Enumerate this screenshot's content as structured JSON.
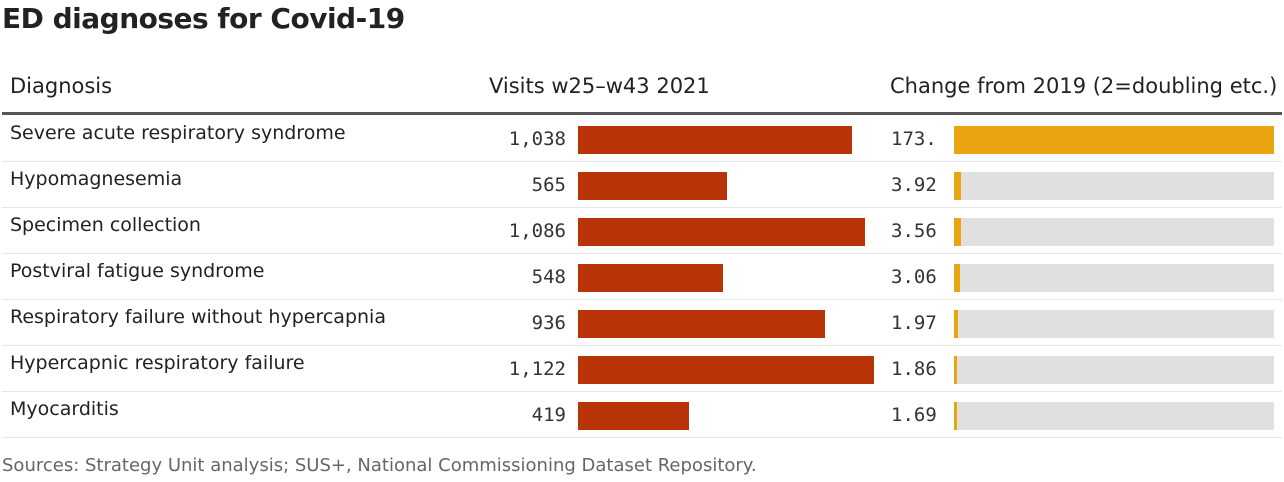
{
  "title": "ED diagnoses for Covid-19",
  "headers": {
    "diagnosis": "Diagnosis",
    "visits": "Visits w25–w43 2021",
    "change": "Change from 2019 (2=doubling etc.)"
  },
  "source": "Sources: Strategy Unit analysis; SUS+, National Commissioning Dataset Repository.",
  "colors": {
    "visits_bar": "#b83306",
    "change_bar": "#e9a40f",
    "change_track": "#e0e0e0"
  },
  "chart_data": {
    "type": "table",
    "title": "ED diagnoses for Covid-19",
    "columns": [
      "Diagnosis",
      "Visits w25–w43 2021",
      "Change from 2019 (2=doubling etc.)"
    ],
    "visits_max": 1122,
    "change_max": 173,
    "rows": [
      {
        "diagnosis": "Severe acute respiratory syndrome",
        "visits": 1038,
        "visits_label": "1,038",
        "change": 173,
        "change_label": "173."
      },
      {
        "diagnosis": "Hypomagnesemia",
        "visits": 565,
        "visits_label": "565",
        "change": 3.92,
        "change_label": "3.92"
      },
      {
        "diagnosis": "Specimen collection",
        "visits": 1086,
        "visits_label": "1,086",
        "change": 3.56,
        "change_label": "3.56"
      },
      {
        "diagnosis": "Postviral fatigue syndrome",
        "visits": 548,
        "visits_label": "548",
        "change": 3.06,
        "change_label": "3.06"
      },
      {
        "diagnosis": "Respiratory failure without hypercapnia",
        "visits": 936,
        "visits_label": "936",
        "change": 1.97,
        "change_label": "1.97"
      },
      {
        "diagnosis": "Hypercapnic respiratory failure",
        "visits": 1122,
        "visits_label": "1,122",
        "change": 1.86,
        "change_label": "1.86"
      },
      {
        "diagnosis": "Myocarditis",
        "visits": 419,
        "visits_label": "419",
        "change": 1.69,
        "change_label": "1.69"
      }
    ]
  }
}
